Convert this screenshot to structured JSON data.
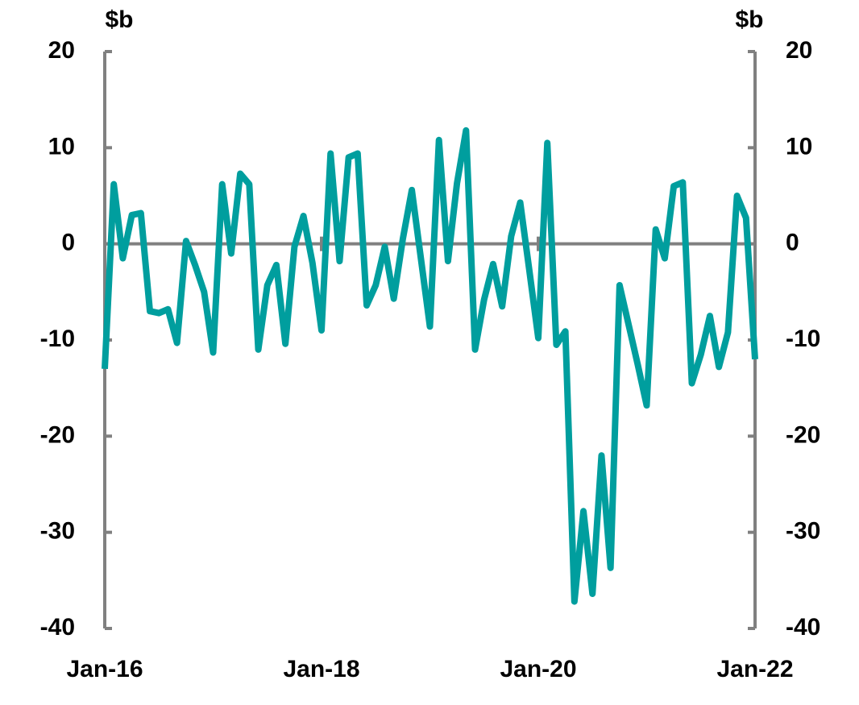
{
  "chart_data": {
    "type": "line",
    "y_label": "$b",
    "y2_label": "$b",
    "categories": [
      "Jan-16",
      null,
      null,
      null,
      null,
      null,
      null,
      null,
      null,
      null,
      null,
      null,
      null,
      null,
      null,
      null,
      null,
      null,
      null,
      null,
      null,
      null,
      null,
      null,
      "Jan-18",
      null,
      null,
      null,
      null,
      null,
      null,
      null,
      null,
      null,
      null,
      null,
      null,
      null,
      null,
      null,
      null,
      null,
      null,
      null,
      null,
      null,
      null,
      null,
      "Jan-20",
      null,
      null,
      null,
      null,
      null,
      null,
      null,
      null,
      null,
      null,
      null,
      null,
      null,
      null,
      null,
      null,
      null,
      null,
      null,
      null,
      null,
      null,
      null,
      "Jan-22"
    ],
    "series": [
      {
        "color": "#009e9e",
        "values": [
          -13,
          6.2,
          -1.5,
          3,
          3.2,
          -7,
          -7.2,
          -6.8,
          -10.3,
          0.3,
          -2.2,
          -5,
          -11.3,
          6.2,
          -1,
          7.3,
          6.2,
          -11,
          -4.3,
          -2.2,
          -10.4,
          -0.3,
          2.9,
          -2,
          -9,
          9.4,
          -1.8,
          9,
          9.4,
          -6.4,
          -4.3,
          -0.3,
          -5.7,
          0.5,
          5.6,
          -1.5,
          -8.6,
          10.8,
          -1.8,
          6.3,
          11.8,
          -11,
          -5.8,
          -2.1,
          -6.5,
          0.8,
          4.3,
          -2.7,
          -9.8,
          10.5,
          -10.5,
          -9.1,
          -37.2,
          -27.8,
          -36.4,
          -22,
          -33.7,
          -4.3,
          -8.4,
          -12.5,
          -16.8,
          1.5,
          -1.5,
          6,
          6.4,
          -14.5,
          -11.5,
          -7.5,
          -12.8,
          -9.2,
          5,
          2.7,
          -12
        ]
      }
    ],
    "ylim": [
      -40,
      20
    ],
    "yticks": [
      -40,
      -30,
      -20,
      -10,
      0,
      10,
      20
    ],
    "y2lim": [
      -40,
      20
    ],
    "y2ticks": [
      -40,
      -30,
      -20,
      -10,
      0,
      10,
      20
    ]
  }
}
